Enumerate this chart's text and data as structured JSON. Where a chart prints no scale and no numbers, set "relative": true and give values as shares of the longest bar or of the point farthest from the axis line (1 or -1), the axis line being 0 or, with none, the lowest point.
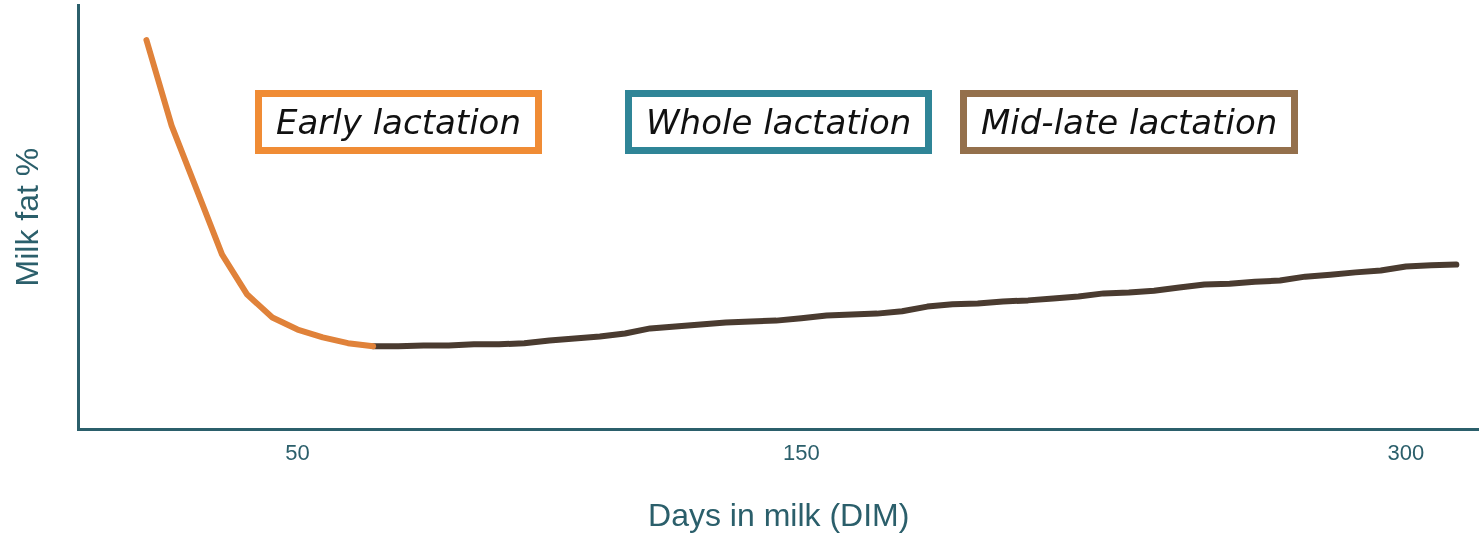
{
  "chart_data": {
    "type": "line",
    "relative": true,
    "xlabel": "Days in milk (DIM)",
    "ylabel": "Milk fat %",
    "grid": false,
    "legend": false,
    "marker": "none",
    "line_style": "solid",
    "categories": [
      null,
      null,
      null,
      null,
      null,
      null,
      "50",
      null,
      null,
      null,
      null,
      null,
      null,
      null,
      null,
      null,
      null,
      null,
      null,
      null,
      null,
      null,
      null,
      null,
      null,
      null,
      "150",
      null,
      null,
      null,
      null,
      null,
      null,
      null,
      null,
      null,
      null,
      null,
      null,
      null,
      null,
      null,
      null,
      null,
      null,
      null,
      null,
      null,
      null,
      null,
      "300",
      null,
      null
    ],
    "series": [
      {
        "color": "#e0823a",
        "values": [
          1.0,
          0.78,
          0.615,
          0.449,
          0.346,
          0.287,
          0.256,
          0.236,
          0.221,
          0.213,
          null,
          null,
          null,
          null,
          null,
          null,
          null,
          null,
          null,
          null,
          null,
          null,
          null,
          null,
          null,
          null,
          null,
          null,
          null,
          null,
          null,
          null,
          null,
          null,
          null,
          null,
          null,
          null,
          null,
          null,
          null,
          null,
          null,
          null,
          null,
          null,
          null,
          null,
          null,
          null,
          null,
          null,
          null
        ]
      },
      {
        "color": "#4a3b30",
        "values": [
          null,
          null,
          null,
          null,
          null,
          null,
          null,
          null,
          null,
          0.213,
          0.213,
          0.215,
          0.215,
          0.218,
          0.218,
          0.221,
          0.228,
          0.233,
          0.238,
          0.246,
          0.259,
          0.264,
          0.269,
          0.274,
          0.277,
          0.279,
          0.285,
          0.292,
          0.295,
          0.297,
          0.303,
          0.315,
          0.321,
          0.323,
          0.328,
          0.331,
          0.336,
          0.341,
          0.349,
          0.351,
          0.356,
          0.364,
          0.372,
          0.374,
          0.379,
          0.382,
          0.392,
          0.397,
          0.403,
          0.408,
          0.418,
          0.421,
          0.423
        ]
      }
    ],
    "annotations": [
      "Early lactation",
      "Whole lactation",
      "Mid-late lactation"
    ]
  }
}
